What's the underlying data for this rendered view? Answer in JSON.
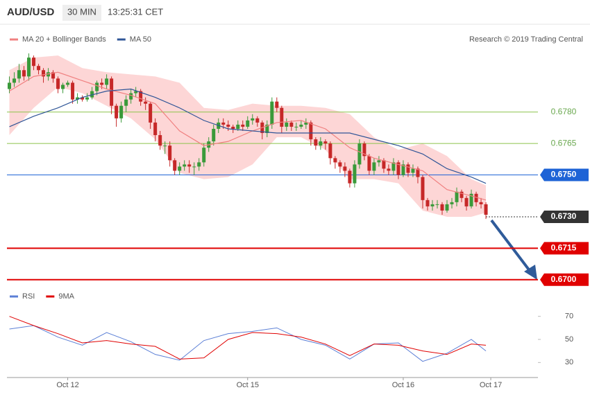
{
  "header": {
    "symbol": "AUD/USD",
    "interval": "30 MIN",
    "time": "13:25:31 CET"
  },
  "credit": "Research © 2019 Trading Central",
  "chart_data": [
    {
      "type": "candlestick",
      "xlim": [
        -0.5,
        108.7
      ],
      "ylim": [
        0.6692,
        0.6811
      ],
      "open": [
        0.6791,
        0.6794,
        0.6796,
        0.68,
        0.6797,
        0.6806,
        0.6802,
        0.68,
        0.6797,
        0.6799,
        0.6796,
        0.6791,
        0.6793,
        0.6794,
        0.6786,
        0.6787,
        0.6786,
        0.6787,
        0.679,
        0.6794,
        0.6793,
        0.6796,
        0.6783,
        0.6777,
        0.6783,
        0.6786,
        0.6789,
        0.679,
        0.6785,
        0.6784,
        0.6775,
        0.6769,
        0.6764,
        0.6764,
        0.6757,
        0.6752,
        0.6754,
        0.6755,
        0.6754,
        0.6754,
        0.6756,
        0.6763,
        0.6766,
        0.6772,
        0.6775,
        0.6774,
        0.6773,
        0.6772,
        0.6774,
        0.6773,
        0.6776,
        0.6777,
        0.6775,
        0.677,
        0.6774,
        0.6785,
        0.6782,
        0.6773,
        0.6775,
        0.6773,
        0.6773,
        0.6774,
        0.6775,
        0.6767,
        0.6764,
        0.6766,
        0.6765,
        0.6758,
        0.6756,
        0.6754,
        0.6752,
        0.6746,
        0.6755,
        0.6765,
        0.6759,
        0.6752,
        0.6756,
        0.6757,
        0.6753,
        0.6752,
        0.6756,
        0.675,
        0.6755,
        0.6751,
        0.6753,
        0.6749,
        0.6738,
        0.6735,
        0.6736,
        0.6736,
        0.6733,
        0.6736,
        0.6737,
        0.6742,
        0.6739,
        0.6735,
        0.6741,
        0.6737,
        0.6736
      ],
      "high": [
        0.6797,
        0.6799,
        0.6803,
        0.6802,
        0.6808,
        0.6807,
        0.6803,
        0.6801,
        0.6801,
        0.68,
        0.6797,
        0.6794,
        0.6795,
        0.6795,
        0.6789,
        0.6788,
        0.6789,
        0.6792,
        0.6795,
        0.6796,
        0.6798,
        0.6797,
        0.6784,
        0.6785,
        0.6788,
        0.6791,
        0.6792,
        0.6791,
        0.6787,
        0.6785,
        0.6777,
        0.6771,
        0.6766,
        0.6766,
        0.6758,
        0.6756,
        0.6757,
        0.6757,
        0.6756,
        0.6758,
        0.6765,
        0.6768,
        0.6774,
        0.6777,
        0.6777,
        0.6776,
        0.6774,
        0.6776,
        0.6776,
        0.6778,
        0.6779,
        0.6778,
        0.6776,
        0.6776,
        0.6787,
        0.6787,
        0.6783,
        0.6777,
        0.6776,
        0.6775,
        0.6776,
        0.6777,
        0.6776,
        0.6768,
        0.6768,
        0.6767,
        0.6766,
        0.6759,
        0.6757,
        0.6756,
        0.6753,
        0.6757,
        0.6767,
        0.6766,
        0.676,
        0.6758,
        0.6759,
        0.6758,
        0.6755,
        0.6758,
        0.6757,
        0.6757,
        0.6756,
        0.6755,
        0.6754,
        0.675,
        0.6739,
        0.6738,
        0.6738,
        0.6737,
        0.6738,
        0.6739,
        0.6744,
        0.6743,
        0.674,
        0.6743,
        0.6742,
        0.6739,
        0.6737
      ],
      "low": [
        0.6789,
        0.6792,
        0.6794,
        0.6795,
        0.6795,
        0.68,
        0.6798,
        0.6794,
        0.6795,
        0.6794,
        0.6789,
        0.6789,
        0.6792,
        0.6784,
        0.6784,
        0.6785,
        0.6785,
        0.6786,
        0.6788,
        0.6791,
        0.6791,
        0.6779,
        0.6773,
        0.6775,
        0.678,
        0.6784,
        0.6787,
        0.6783,
        0.6781,
        0.6772,
        0.6766,
        0.6762,
        0.676,
        0.6754,
        0.675,
        0.675,
        0.6752,
        0.6751,
        0.675,
        0.6752,
        0.6754,
        0.6761,
        0.6764,
        0.677,
        0.6772,
        0.6771,
        0.677,
        0.6771,
        0.6771,
        0.6772,
        0.6774,
        0.6773,
        0.6767,
        0.6768,
        0.6772,
        0.678,
        0.677,
        0.6771,
        0.6771,
        0.6771,
        0.6772,
        0.6772,
        0.6764,
        0.6762,
        0.6762,
        0.6762,
        0.6755,
        0.6753,
        0.6751,
        0.6749,
        0.6744,
        0.6744,
        0.6753,
        0.6757,
        0.675,
        0.675,
        0.6754,
        0.6751,
        0.675,
        0.675,
        0.6748,
        0.6749,
        0.6749,
        0.6749,
        0.6746,
        0.6734,
        0.6733,
        0.6733,
        0.6734,
        0.6731,
        0.6732,
        0.6734,
        0.6735,
        0.6737,
        0.6733,
        0.6734,
        0.6735,
        0.6734,
        0.6729
      ],
      "close": [
        0.6794,
        0.6796,
        0.68,
        0.6797,
        0.6806,
        0.6802,
        0.68,
        0.6797,
        0.6799,
        0.6796,
        0.6791,
        0.6793,
        0.6794,
        0.6786,
        0.6787,
        0.6786,
        0.6787,
        0.679,
        0.6794,
        0.6793,
        0.6796,
        0.6783,
        0.6777,
        0.6783,
        0.6786,
        0.6789,
        0.679,
        0.6785,
        0.6784,
        0.6775,
        0.6769,
        0.6764,
        0.6764,
        0.6757,
        0.6752,
        0.6754,
        0.6755,
        0.6754,
        0.6754,
        0.6756,
        0.6763,
        0.6766,
        0.6772,
        0.6775,
        0.6774,
        0.6773,
        0.6772,
        0.6774,
        0.6773,
        0.6776,
        0.6777,
        0.6775,
        0.677,
        0.6774,
        0.6785,
        0.6782,
        0.6773,
        0.6775,
        0.6773,
        0.6773,
        0.6774,
        0.6775,
        0.6767,
        0.6764,
        0.6766,
        0.6765,
        0.6758,
        0.6756,
        0.6754,
        0.6752,
        0.6746,
        0.6755,
        0.6765,
        0.6759,
        0.6752,
        0.6756,
        0.6757,
        0.6753,
        0.6752,
        0.6756,
        0.675,
        0.6755,
        0.6751,
        0.6753,
        0.6749,
        0.6738,
        0.6735,
        0.6736,
        0.6736,
        0.6733,
        0.6736,
        0.6737,
        0.6742,
        0.6739,
        0.6735,
        0.6741,
        0.6737,
        0.6736,
        0.6731
      ],
      "up_color": "#3a9a3a",
      "down_color": "#c62828",
      "series": [
        {
          "name": "MA 20 + Bollinger Bands",
          "color": "#f08080",
          "band_color": "#fdd6d6",
          "x": [
            0,
            5,
            10,
            15,
            20,
            25,
            30,
            35,
            40,
            45,
            50,
            55,
            60,
            65,
            70,
            75,
            80,
            85,
            90,
            95,
            98
          ],
          "values": [
            0.679,
            0.6797,
            0.6799,
            0.6795,
            0.6791,
            0.6788,
            0.6784,
            0.6771,
            0.6764,
            0.6766,
            0.6771,
            0.6775,
            0.6776,
            0.6772,
            0.6763,
            0.6758,
            0.6755,
            0.6752,
            0.6743,
            0.674,
            0.6738
          ],
          "upper": [
            0.68,
            0.6806,
            0.6807,
            0.6801,
            0.6799,
            0.6798,
            0.6797,
            0.6794,
            0.6782,
            0.6781,
            0.6784,
            0.6783,
            0.6783,
            0.6782,
            0.6779,
            0.6768,
            0.6762,
            0.6765,
            0.6759,
            0.6748,
            0.6745
          ],
          "lower": [
            0.6769,
            0.6782,
            0.6792,
            0.6789,
            0.6783,
            0.6777,
            0.6767,
            0.6751,
            0.6748,
            0.6749,
            0.6755,
            0.6768,
            0.6768,
            0.6762,
            0.6748,
            0.6748,
            0.6746,
            0.6733,
            0.673,
            0.673,
            0.6732
          ]
        },
        {
          "name": "MA 50",
          "color": "#2f5597",
          "x": [
            0,
            5,
            10,
            15,
            20,
            25,
            30,
            35,
            40,
            45,
            50,
            55,
            60,
            65,
            70,
            75,
            80,
            85,
            90,
            95,
            98
          ],
          "values": [
            0.6773,
            0.6778,
            0.6782,
            0.6787,
            0.679,
            0.6791,
            0.6787,
            0.6782,
            0.6776,
            0.6772,
            0.6771,
            0.677,
            0.677,
            0.677,
            0.677,
            0.6767,
            0.6764,
            0.676,
            0.6753,
            0.6749,
            0.6746
          ]
        }
      ],
      "levels": [
        {
          "value": 0.678,
          "label": "0.6780",
          "color": "#8bc34a",
          "box": false
        },
        {
          "value": 0.6765,
          "label": "0.6765",
          "color": "#8bc34a",
          "box": false
        },
        {
          "value": 0.675,
          "label": "0.6750",
          "color": "#1e63d6",
          "box": true
        },
        {
          "value": 0.673,
          "label": "0.6730",
          "color": "#333333",
          "box": true
        },
        {
          "value": 0.6715,
          "label": "0.6715",
          "color": "#e00000",
          "box": true
        },
        {
          "value": 0.67,
          "label": "0.6700",
          "color": "#e00000",
          "box": true
        }
      ]
    },
    {
      "type": "line",
      "xlim": [
        -0.5,
        108.7
      ],
      "ylim": [
        20,
        77
      ],
      "yticks": [
        30,
        50,
        70
      ],
      "xticks": [
        {
          "value": 12,
          "label": "Oct 12"
        },
        {
          "value": 49,
          "label": "Oct 15"
        },
        {
          "value": 81,
          "label": "Oct 16"
        },
        {
          "value": 99,
          "label": "Oct 17"
        }
      ],
      "series": [
        {
          "name": "RSI",
          "color": "#5b7fd6",
          "x": [
            0,
            5,
            10,
            15,
            20,
            25,
            30,
            35,
            40,
            45,
            50,
            55,
            60,
            65,
            70,
            75,
            80,
            85,
            90,
            95,
            98
          ],
          "values": [
            59,
            62,
            52,
            45,
            56,
            48,
            37,
            32,
            49,
            55,
            57,
            60,
            50,
            45,
            33,
            46,
            47,
            31,
            38,
            50,
            40
          ]
        },
        {
          "name": "9MA",
          "color": "#e00000",
          "x": [
            0,
            5,
            10,
            15,
            20,
            25,
            30,
            35,
            40,
            45,
            50,
            55,
            60,
            65,
            70,
            75,
            80,
            85,
            90,
            95,
            98
          ],
          "values": [
            70,
            62,
            55,
            47,
            49,
            46,
            44,
            33,
            34,
            50,
            56,
            55,
            52,
            46,
            36,
            46,
            45,
            40,
            37,
            46,
            45
          ]
        }
      ]
    }
  ]
}
